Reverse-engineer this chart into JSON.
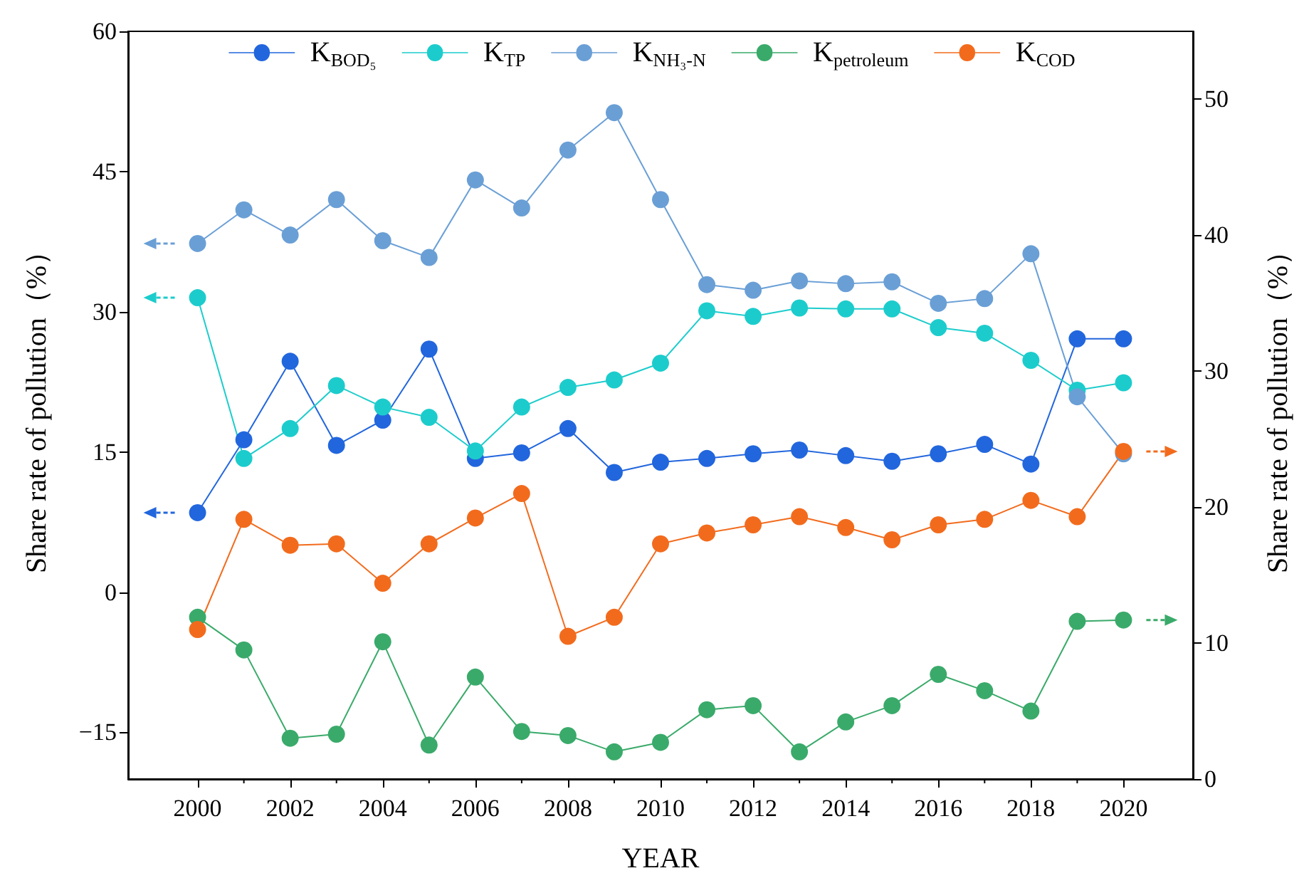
{
  "chart_data": {
    "type": "line",
    "xlabel": "YEAR",
    "ylabel": "Share rate of pollution（%）",
    "y2label": "Share rate of pollution（%）",
    "x": [
      2000,
      2001,
      2002,
      2003,
      2004,
      2005,
      2006,
      2007,
      2008,
      2009,
      2010,
      2011,
      2012,
      2013,
      2014,
      2015,
      2016,
      2017,
      2018,
      2019,
      2020
    ],
    "xlim": [
      1998.5,
      2021.5
    ],
    "xticks": [
      2000,
      2002,
      2004,
      2006,
      2008,
      2010,
      2012,
      2014,
      2016,
      2018,
      2020
    ],
    "ylim": [
      -20,
      60
    ],
    "yticks": [
      {
        "value": -15,
        "label": "−15"
      },
      0,
      15,
      30,
      45,
      60
    ],
    "y2lim": [
      0,
      55
    ],
    "y2ticks": [
      0,
      10,
      20,
      30,
      40,
      50
    ],
    "series": [
      {
        "name": "K$_{BOD₅}$",
        "color": "#2266dd",
        "values": [
          8.5,
          16.3,
          24.7,
          15.7,
          18.4,
          26.0,
          14.3,
          14.9,
          17.5,
          12.8,
          13.9,
          14.3,
          14.8,
          15.2,
          14.6,
          14.0,
          14.8,
          15.8,
          13.7,
          27.1,
          27.1
        ]
      },
      {
        "name": "K$_{TP}$",
        "color": "#1ccccc",
        "values": [
          31.5,
          14.3,
          17.5,
          22.1,
          19.8,
          18.7,
          15.1,
          19.8,
          21.9,
          22.7,
          24.5,
          30.1,
          29.5,
          30.4,
          30.3,
          30.3,
          28.3,
          27.7,
          24.8,
          21.6,
          22.4
        ]
      },
      {
        "name": "K$_{NH₃-N}$",
        "color": "#6a9fd6",
        "values": [
          37.3,
          40.9,
          38.2,
          42.0,
          37.6,
          35.8,
          44.1,
          41.1,
          47.3,
          51.3,
          42.0,
          32.9,
          32.3,
          33.3,
          33.0,
          33.2,
          30.9,
          31.4,
          36.2,
          20.9,
          14.8
        ]
      },
      {
        "name": "K$_{petroleum}$",
        "color": "#3aaa6a",
        "axis": "y2",
        "values": [
          11.9,
          9.5,
          3.0,
          3.3,
          10.1,
          2.5,
          7.5,
          3.5,
          3.2,
          2.0,
          2.7,
          5.1,
          5.4,
          2.0,
          4.2,
          5.4,
          7.7,
          6.5,
          5.0,
          11.6,
          11.7
        ]
      },
      {
        "name": "K$_{COD}$",
        "color": "#f26b1d",
        "axis": "y2",
        "values": [
          11.0,
          19.1,
          17.2,
          17.3,
          14.4,
          17.3,
          19.2,
          21.0,
          10.5,
          11.9,
          17.3,
          18.1,
          18.7,
          19.3,
          18.5,
          17.6,
          18.7,
          19.1,
          20.5,
          19.3,
          24.1
        ]
      }
    ],
    "legend": "top",
    "grid": false,
    "marker": "circle",
    "line_style": "solid"
  }
}
